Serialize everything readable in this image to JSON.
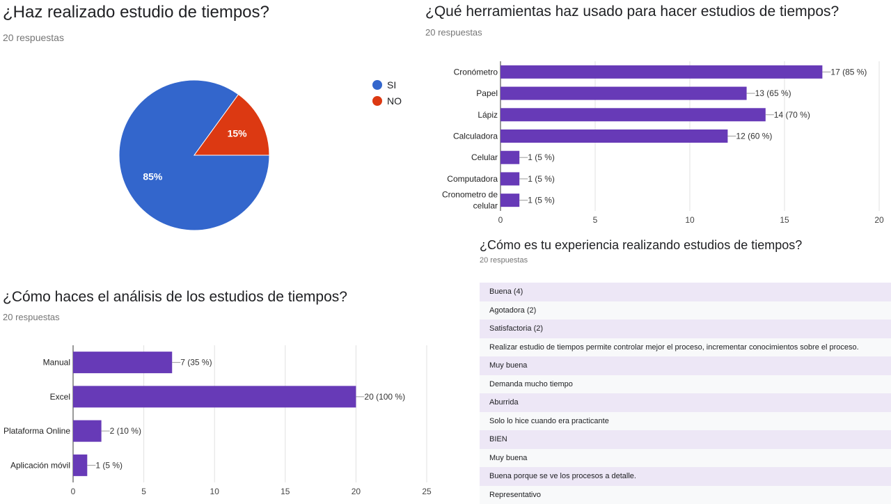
{
  "pie_section": {
    "title": "¿Haz realizado estudio de tiempos?",
    "subtitle": "20 respuestas"
  },
  "tools_section": {
    "title": "¿Qué herramientas haz usado para hacer estudios de tiempos?",
    "subtitle": "20 respuestas"
  },
  "analysis_section": {
    "title": "¿Cómo haces el análisis de los estudios de tiempos?",
    "subtitle": "20 respuestas"
  },
  "experience_section": {
    "title": "¿Cómo es tu experiencia realizando estudios de tiempos?",
    "subtitle": "20 respuestas",
    "responses": [
      "Buena (4)",
      "Agotadora (2)",
      "Satisfactoria (2)",
      "Realizar estudio de tiempos permite controlar mejor el proceso, incrementar conocimientos sobre el proceso.",
      "Muy buena",
      "Demanda mucho tiempo",
      "Aburrida",
      "Solo lo hice cuando era practicante",
      "BIEN",
      "Muy buena",
      "Buena porque se ve los procesos a detalle.",
      "Representativo"
    ]
  },
  "chart_data": [
    {
      "type": "pie",
      "categories": [
        "SI",
        "NO"
      ],
      "values": [
        85,
        15
      ],
      "labels": [
        "85%",
        "15%"
      ],
      "colors": [
        "#3366cc",
        "#dc3912"
      ],
      "legend": "right"
    },
    {
      "type": "bar",
      "orientation": "horizontal",
      "categories": [
        "Cronómetro",
        "Papel",
        "Lápiz",
        "Calculadora",
        "Celular",
        "Computadora",
        "Cronometro de celular"
      ],
      "values": [
        17,
        13,
        14,
        12,
        1,
        1,
        1
      ],
      "data_labels": [
        "17 (85 %)",
        "13 (65 %)",
        "14 (70 %)",
        "12 (60 %)",
        "1 (5 %)",
        "1 (5 %)",
        "1 (5 %)"
      ],
      "xlim": [
        0,
        20
      ],
      "ticks": [
        0,
        5,
        10,
        15,
        20
      ],
      "grid": true,
      "color": "#673ab7"
    },
    {
      "type": "bar",
      "orientation": "horizontal",
      "categories": [
        "Manual",
        "Excel",
        "Plataforma Online",
        "Aplicación móvil"
      ],
      "values": [
        7,
        20,
        2,
        1
      ],
      "data_labels": [
        "7 (35 %)",
        "20 (100 %)",
        "2 (10 %)",
        "1 (5 %)"
      ],
      "xlim": [
        0,
        25
      ],
      "ticks": [
        0,
        5,
        10,
        15,
        20,
        25
      ],
      "grid": true,
      "color": "#673ab7"
    }
  ]
}
